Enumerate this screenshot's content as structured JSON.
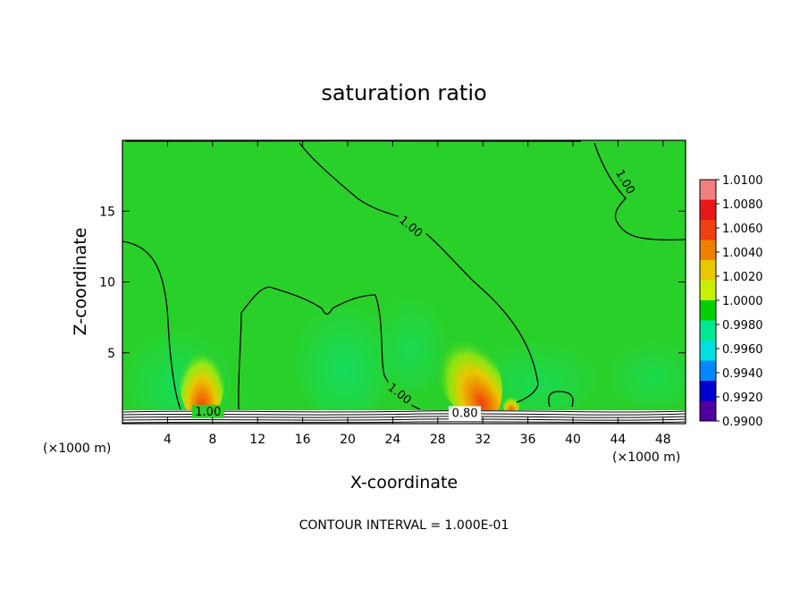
{
  "chart_data": {
    "type": "heatmap",
    "title": "saturation ratio",
    "xlabel": "X-coordinate",
    "ylabel": "Z-coordinate",
    "x_unit": "(×1000 m)",
    "x_unit_right": "(×1000 m)",
    "xlim": [
      0,
      50
    ],
    "ylim": [
      0,
      20
    ],
    "x_ticks": [
      4,
      8,
      12,
      16,
      20,
      24,
      28,
      32,
      36,
      40,
      44,
      48
    ],
    "y_ticks": [
      5,
      10,
      15
    ],
    "colorbar": {
      "labels": [
        "1.0100",
        "1.0080",
        "1.0060",
        "1.0040",
        "1.0020",
        "1.0000",
        "0.9980",
        "0.9960",
        "0.9940",
        "0.9920",
        "0.9900"
      ],
      "colors": [
        "#f08080",
        "#e81818",
        "#f04010",
        "#f08000",
        "#e8c800",
        "#c8f000",
        "#00d000",
        "#00e890",
        "#00e0e0",
        "#0088ff",
        "#0000d0",
        "#5000a0"
      ]
    },
    "contour_labels": [
      {
        "text": "1.00",
        "x": 7.6,
        "y": 0.7
      },
      {
        "text": "1.00",
        "x": 25.5,
        "y": 13.8
      },
      {
        "text": "1.00",
        "x": 44.5,
        "y": 17.0
      },
      {
        "text": "1.00",
        "x": 24.5,
        "y": 2.0
      },
      {
        "text": "0.80",
        "x": 30.4,
        "y": 0.6
      }
    ],
    "hotspots": [
      {
        "x": 7.0,
        "z": 1.2,
        "level": "1.0060"
      },
      {
        "x": 31.5,
        "z": 1.4,
        "level": "1.0060"
      },
      {
        "x": 34.0,
        "z": 1.0,
        "level": "1.0040"
      }
    ],
    "footer": "CONTOUR INTERVAL = 1.000E-01"
  }
}
